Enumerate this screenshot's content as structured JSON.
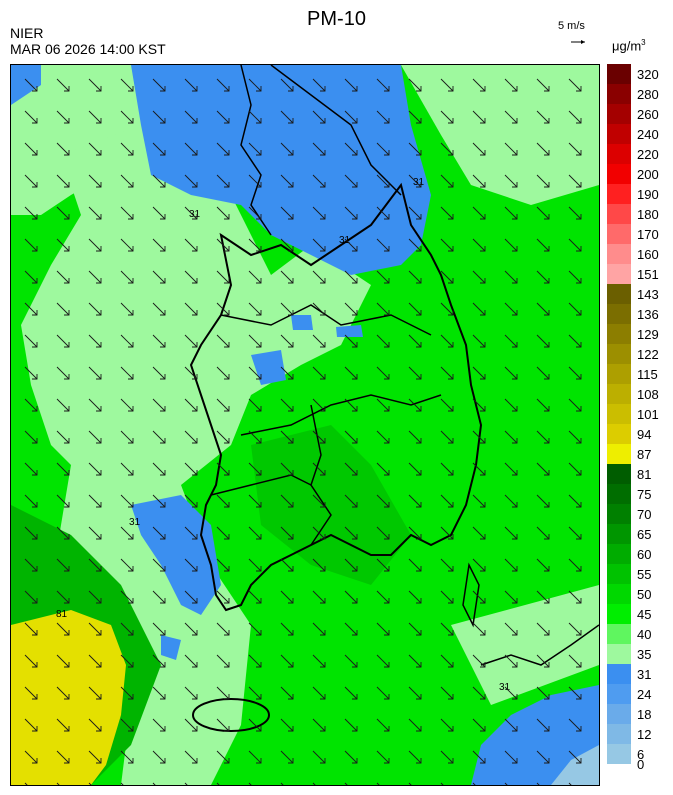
{
  "header": {
    "title": "PM-10",
    "agency": "NIER",
    "datetime": "MAR 06 2026 14:00 KST",
    "wind_reference": "5 m/s",
    "unit": "μg/m",
    "unit_superscript": "3"
  },
  "legend": {
    "levels": [
      {
        "label": "320",
        "color": "#6a0000"
      },
      {
        "label": "280",
        "color": "#8a0000"
      },
      {
        "label": "260",
        "color": "#a40000"
      },
      {
        "label": "240",
        "color": "#c00000"
      },
      {
        "label": "220",
        "color": "#dc0000"
      },
      {
        "label": "200",
        "color": "#f20000"
      },
      {
        "label": "190",
        "color": "#ff2020"
      },
      {
        "label": "180",
        "color": "#ff4848"
      },
      {
        "label": "170",
        "color": "#ff6a6a"
      },
      {
        "label": "160",
        "color": "#ff8c8c"
      },
      {
        "label": "151",
        "color": "#ffa4a4"
      },
      {
        "label": "143",
        "color": "#6b5f00"
      },
      {
        "label": "136",
        "color": "#7b6e00"
      },
      {
        "label": "129",
        "color": "#8c7e00"
      },
      {
        "label": "122",
        "color": "#9c8f00"
      },
      {
        "label": "115",
        "color": "#ad9f00"
      },
      {
        "label": "108",
        "color": "#bcaf00"
      },
      {
        "label": "101",
        "color": "#cbbe00"
      },
      {
        "label": "94",
        "color": "#dccd00"
      },
      {
        "label": "87",
        "color": "#eeee00"
      },
      {
        "label": "81",
        "color": "#005d00"
      },
      {
        "label": "75",
        "color": "#006e00"
      },
      {
        "label": "70",
        "color": "#008000"
      },
      {
        "label": "65",
        "color": "#009600"
      },
      {
        "label": "60",
        "color": "#00ac00"
      },
      {
        "label": "55",
        "color": "#00c200"
      },
      {
        "label": "50",
        "color": "#00d800"
      },
      {
        "label": "45",
        "color": "#00ee00"
      },
      {
        "label": "40",
        "color": "#5ff65f"
      },
      {
        "label": "35",
        "color": "#9ef99e"
      },
      {
        "label": "31",
        "color": "#3b8ff0"
      },
      {
        "label": "24",
        "color": "#4f9cf0"
      },
      {
        "label": "18",
        "color": "#6aabea"
      },
      {
        "label": "12",
        "color": "#7fb9e6"
      },
      {
        "label": "6",
        "color": "#96c8e4"
      },
      {
        "label": "0",
        "color": null
      }
    ]
  },
  "map": {
    "wind_direction": "north-west to south-east",
    "contour_labels": [
      "31",
      "31",
      "31",
      "31",
      "81",
      "31"
    ]
  }
}
